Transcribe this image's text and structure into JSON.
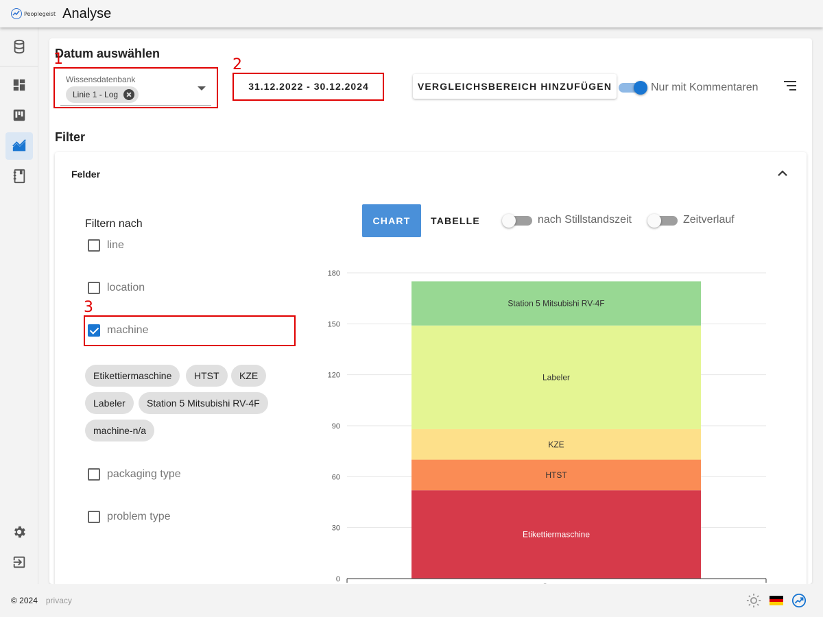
{
  "header": {
    "brand_name": "Peoplegeist",
    "title": "Analyse"
  },
  "sidebar": {
    "items": [
      {
        "icon": "database-icon"
      },
      {
        "icon": "dashboard-icon"
      },
      {
        "icon": "kanban-icon"
      },
      {
        "icon": "analytics-icon",
        "active": true
      },
      {
        "icon": "notebook-icon"
      },
      {
        "icon": "gear-icon"
      },
      {
        "icon": "logout-icon"
      }
    ]
  },
  "date_section": {
    "title": "Datum auswählen",
    "knowledge_db": {
      "label": "Wissensdatenbank",
      "selected": "Linie 1 - Log"
    },
    "date_range": "31.12.2022 - 30.12.2024",
    "compare_button": "VERGLEICHSBEREICH HINZUFÜGEN",
    "comments_toggle": {
      "label": "Nur mit Kommentaren",
      "on": true
    }
  },
  "annotations": [
    "1",
    "2",
    "3"
  ],
  "filter_section": {
    "title": "Filter",
    "panel_title": "Felder",
    "filter_by_label": "Filtern nach",
    "fields": [
      {
        "label": "line",
        "checked": false
      },
      {
        "label": "location",
        "checked": false
      },
      {
        "label": "machine",
        "checked": true
      },
      {
        "label": "packaging type",
        "checked": false
      },
      {
        "label": "problem type",
        "checked": false
      }
    ],
    "machine_chips": [
      "Etikettiermaschine",
      "HTST",
      "KZE",
      "Labeler",
      "Station 5 Mitsubishi RV-4F",
      "machine-n/a"
    ],
    "view_tabs": {
      "chart": "CHART",
      "table": "TABELLE",
      "active": "CHART"
    },
    "downtime_toggle": {
      "label": "nach Stillstandszeit",
      "on": false
    },
    "timeline_toggle": {
      "label": "Zeitverlauf",
      "on": false
    }
  },
  "chart_data": {
    "type": "bar",
    "stacked": true,
    "categories": [
      "Gesamt"
    ],
    "ylim": [
      0,
      180
    ],
    "yticks": [
      0,
      30,
      60,
      90,
      120,
      150,
      180
    ],
    "grid": true,
    "series": [
      {
        "name": "Etikettiermaschine",
        "values": [
          52
        ],
        "color": "#d63a4a"
      },
      {
        "name": "HTST",
        "values": [
          18
        ],
        "color": "#fa8c55"
      },
      {
        "name": "KZE",
        "values": [
          18
        ],
        "color": "#fde08a"
      },
      {
        "name": "Labeler",
        "values": [
          61
        ],
        "color": "#e4f593"
      },
      {
        "name": "Station 5 Mitsubishi RV-4F",
        "values": [
          26
        ],
        "color": "#98d893"
      }
    ]
  },
  "footer": {
    "copyright": "© 2024",
    "privacy": "privacy"
  },
  "colors": {
    "accent": "#1976d2",
    "annotation": "#e00000"
  }
}
